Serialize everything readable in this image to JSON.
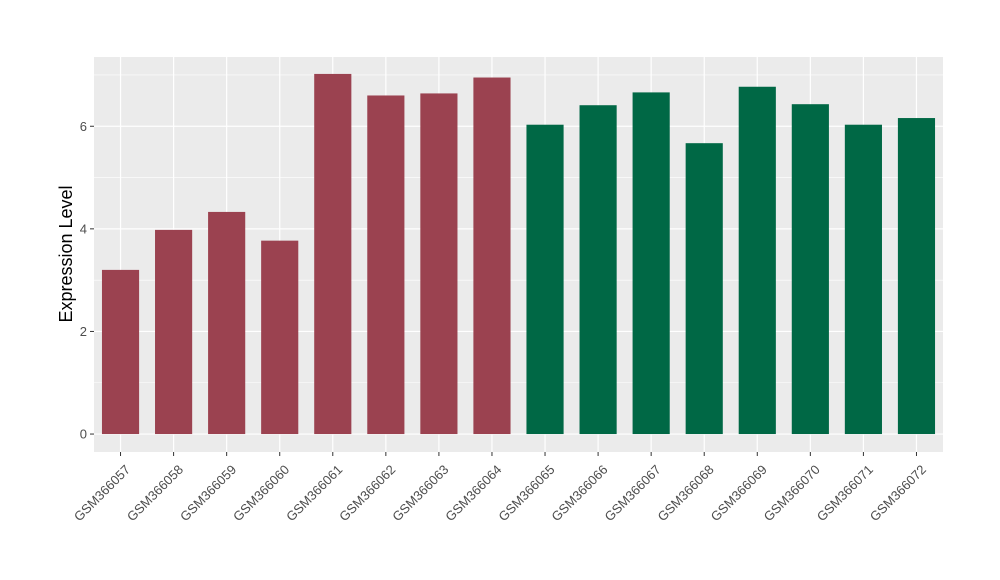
{
  "chart_data": {
    "type": "bar",
    "title": "",
    "xlabel": "",
    "ylabel": "Expression Level",
    "ylim": [
      -0.35,
      7.35
    ],
    "yticks": [
      0,
      2,
      4,
      6
    ],
    "grid": true,
    "legend": "none",
    "categories": [
      "GSM366057",
      "GSM366058",
      "GSM366059",
      "GSM366060",
      "GSM366061",
      "GSM366062",
      "GSM366063",
      "GSM366064",
      "GSM366065",
      "GSM366066",
      "GSM366067",
      "GSM366068",
      "GSM366069",
      "GSM366070",
      "GSM366071",
      "GSM366072"
    ],
    "values": [
      3.2,
      3.98,
      4.33,
      3.77,
      7.02,
      6.6,
      6.64,
      6.95,
      6.03,
      6.41,
      6.66,
      5.67,
      6.77,
      6.43,
      6.03,
      6.16
    ],
    "bar_colors": [
      "#9b4250",
      "#9b4250",
      "#9b4250",
      "#9b4250",
      "#9b4250",
      "#9b4250",
      "#9b4250",
      "#9b4250",
      "#006845",
      "#006845",
      "#006845",
      "#006845",
      "#006845",
      "#006845",
      "#006845",
      "#006845"
    ],
    "panel_background": "#ebebeb",
    "grid_color": "#ffffff"
  }
}
